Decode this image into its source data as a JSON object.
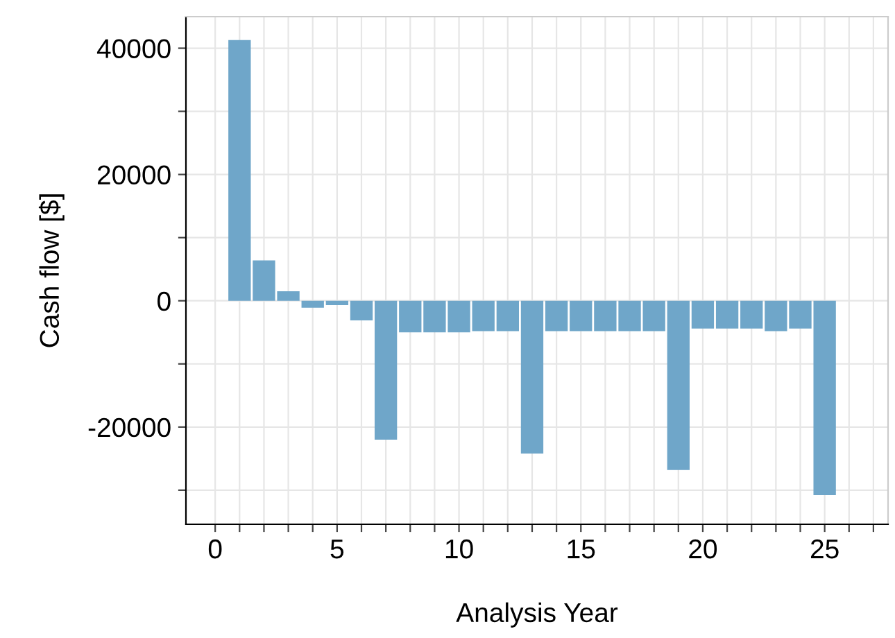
{
  "chart_data": {
    "type": "bar",
    "xlabel": "Analysis Year",
    "ylabel": "Cash flow [$]",
    "x": [
      1,
      2,
      3,
      4,
      5,
      6,
      7,
      8,
      9,
      10,
      11,
      12,
      13,
      14,
      15,
      16,
      17,
      18,
      19,
      20,
      21,
      22,
      23,
      24,
      25
    ],
    "series": [
      {
        "color": "#6fa6c9",
        "values": [
          41300,
          6400,
          1500,
          -1100,
          -700,
          -3100,
          -22000,
          -5000,
          -5000,
          -5000,
          -4800,
          -4800,
          -24200,
          -4800,
          -4800,
          -4800,
          -4800,
          -4800,
          -26800,
          -4400,
          -4400,
          -4400,
          -4800,
          -4400,
          -30800
        ]
      }
    ],
    "xlim": [
      -1.2,
      27.6
    ],
    "ylim": [
      -35400,
      45000
    ],
    "xticks": [
      0,
      {
        "value": 1,
        "label": null
      },
      {
        "value": 2,
        "label": null
      },
      {
        "value": 3,
        "label": null
      },
      {
        "value": 4,
        "label": null
      },
      5,
      {
        "value": 6,
        "label": null
      },
      {
        "value": 7,
        "label": null
      },
      {
        "value": 8,
        "label": null
      },
      {
        "value": 9,
        "label": null
      },
      10,
      {
        "value": 11,
        "label": null
      },
      {
        "value": 12,
        "label": null
      },
      {
        "value": 13,
        "label": null
      },
      {
        "value": 14,
        "label": null
      },
      15,
      {
        "value": 16,
        "label": null
      },
      {
        "value": 17,
        "label": null
      },
      {
        "value": 18,
        "label": null
      },
      {
        "value": 19,
        "label": null
      },
      20,
      {
        "value": 21,
        "label": null
      },
      {
        "value": 22,
        "label": null
      },
      {
        "value": 23,
        "label": null
      },
      {
        "value": 24,
        "label": null
      },
      25,
      {
        "value": 26,
        "label": null
      },
      {
        "value": 27,
        "label": null
      }
    ],
    "yticks": [
      {
        "value": -30000,
        "label": null
      },
      -20000,
      {
        "value": -10000,
        "label": null
      },
      0,
      {
        "value": 10000,
        "label": null
      },
      20000,
      {
        "value": 30000,
        "label": null
      },
      40000
    ],
    "grid": true
  }
}
